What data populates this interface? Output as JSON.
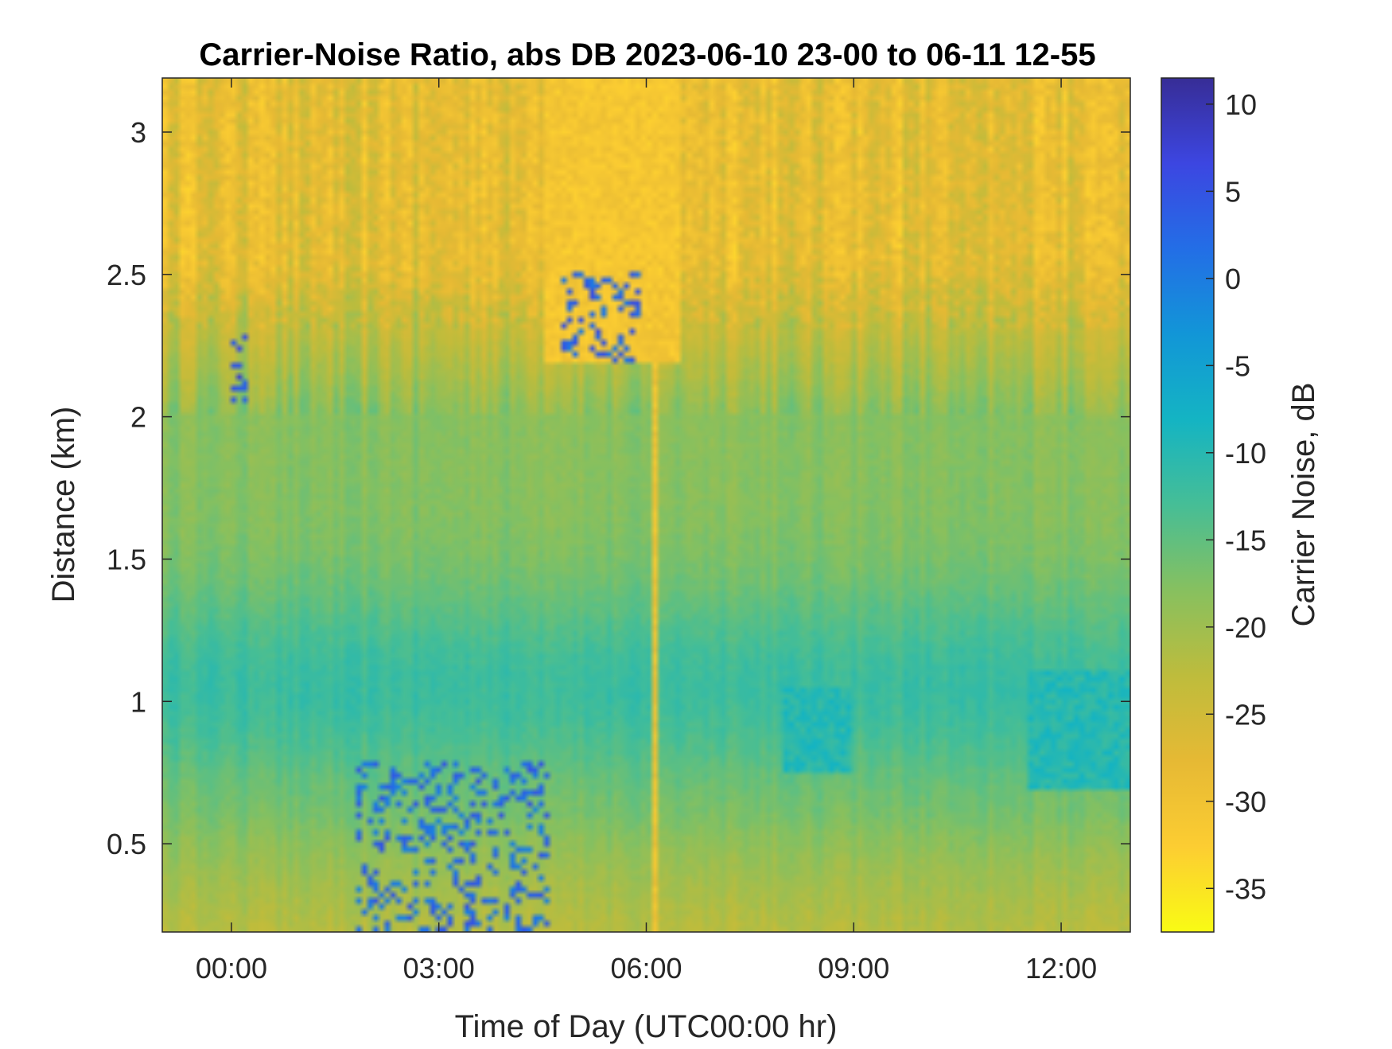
{
  "chart_data": {
    "type": "heatmap",
    "title": "Carrier-Noise Ratio, abs DB 2023-06-10 23-00 to 06-11 12-55",
    "xlabel": "Time of Day (UTC00:00 hr)",
    "ylabel": "Distance (km)",
    "xlim": [
      -1.0,
      13.0
    ],
    "ylim": [
      0.19,
      3.19
    ],
    "x_ticks": [
      0,
      3,
      6,
      9,
      12
    ],
    "x_tick_labels": [
      "00:00",
      "03:00",
      "06:00",
      "09:00",
      "12:00"
    ],
    "y_ticks": [
      0.5,
      1,
      1.5,
      2,
      2.5,
      3
    ],
    "y_tick_labels": [
      "0.5",
      "1",
      "1.5",
      "2",
      "2.5",
      "3"
    ],
    "colorbar": {
      "label": "Carrier Noise, dB",
      "range": [
        -37.5,
        11.5
      ],
      "ticks": [
        10,
        5,
        0,
        -5,
        -10,
        -15,
        -20,
        -25,
        -30,
        -35
      ],
      "tick_labels": [
        "10",
        "5",
        "0",
        "-5",
        "-10",
        "-15",
        "-20",
        "-25",
        "-30",
        "-35"
      ],
      "colormap": "parula"
    },
    "grid": false,
    "features": [
      {
        "t": [
          -1.0,
          13.0
        ],
        "d": [
          2.6,
          3.19
        ],
        "cnr_db": -28,
        "note": "upper band"
      },
      {
        "t": [
          -1.0,
          13.0
        ],
        "d": [
          0.8,
          1.3
        ],
        "cnr_db": -12,
        "note": "mid band"
      },
      {
        "t": [
          4.5,
          6.5
        ],
        "d": [
          2.2,
          3.19
        ],
        "cnr_db": -31
      },
      {
        "t": [
          6.05,
          6.2
        ],
        "d": [
          0.19,
          2.4
        ],
        "cnr_db": -30
      },
      {
        "t": [
          0.0,
          0.2
        ],
        "d": [
          1.95,
          2.3
        ],
        "cnr_db": 5
      },
      {
        "t": [
          4.8,
          5.9
        ],
        "d": [
          2.2,
          2.5
        ],
        "cnr_db": 3
      },
      {
        "t": [
          1.8,
          4.6
        ],
        "d": [
          0.19,
          0.8
        ],
        "cnr_db": 2
      },
      {
        "t": [
          8.0,
          9.0
        ],
        "d": [
          0.75,
          1.05
        ],
        "cnr_db": -10
      },
      {
        "t": [
          11.5,
          13.0
        ],
        "d": [
          0.7,
          1.1
        ],
        "cnr_db": -10
      }
    ]
  }
}
